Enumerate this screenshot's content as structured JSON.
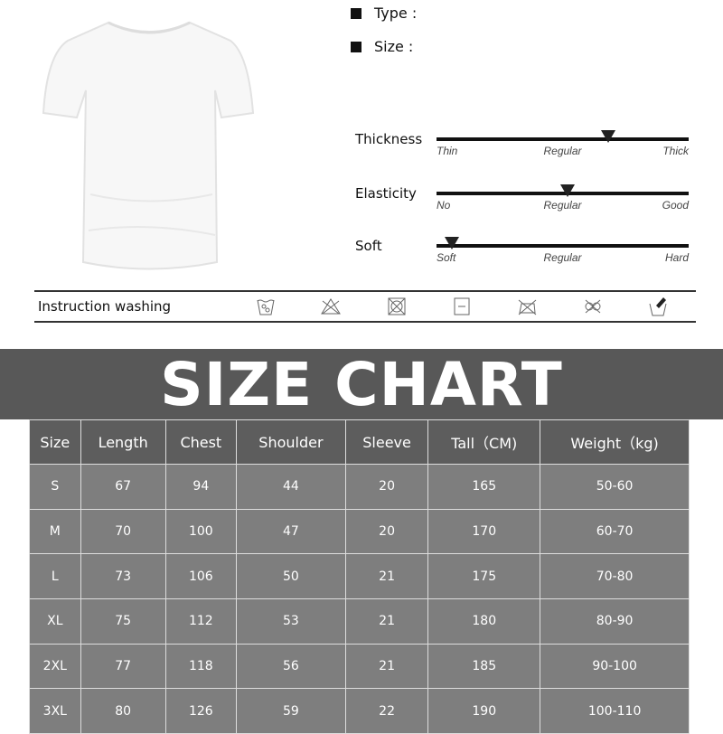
{
  "specs": {
    "type_label": "Type :",
    "size_label": "Size :"
  },
  "sliders": [
    {
      "label": "Thickness",
      "ticks": [
        "Thin",
        "Regular",
        "Thick"
      ],
      "level_percent": 68
    },
    {
      "label": "Elasticity",
      "ticks": [
        "No",
        "Regular",
        "Good"
      ],
      "level_percent": 52
    },
    {
      "label": "Soft",
      "ticks": [
        "Soft",
        "Regular",
        "Hard"
      ],
      "level_percent": 6
    }
  ],
  "washing": {
    "label": "Instruction washing",
    "icons": [
      "hand-wash-icon",
      "no-bleach-icon",
      "no-tumble-dry-icon",
      "dry-flat-icon",
      "no-iron-icon",
      "no-dry-clean-icon",
      "wash-brush-icon"
    ]
  },
  "banner": {
    "title": "SIZE CHART"
  },
  "colors": {
    "banner": "#585858",
    "header": "#5d5d5d",
    "row": "#7e7e7e"
  },
  "table": {
    "headers": [
      "Size",
      "Length",
      "Chest",
      "Shoulder",
      "Sleeve",
      "Tall（CM)",
      "Weight（kg)"
    ],
    "rows": [
      [
        "S",
        "67",
        "94",
        "44",
        "20",
        "165",
        "50-60"
      ],
      [
        "M",
        "70",
        "100",
        "47",
        "20",
        "170",
        "60-70"
      ],
      [
        "L",
        "73",
        "106",
        "50",
        "21",
        "175",
        "70-80"
      ],
      [
        "XL",
        "75",
        "112",
        "53",
        "21",
        "180",
        "80-90"
      ],
      [
        "2XL",
        "77",
        "118",
        "56",
        "21",
        "185",
        "90-100"
      ],
      [
        "3XL",
        "80",
        "126",
        "59",
        "22",
        "190",
        "100-110"
      ]
    ]
  }
}
